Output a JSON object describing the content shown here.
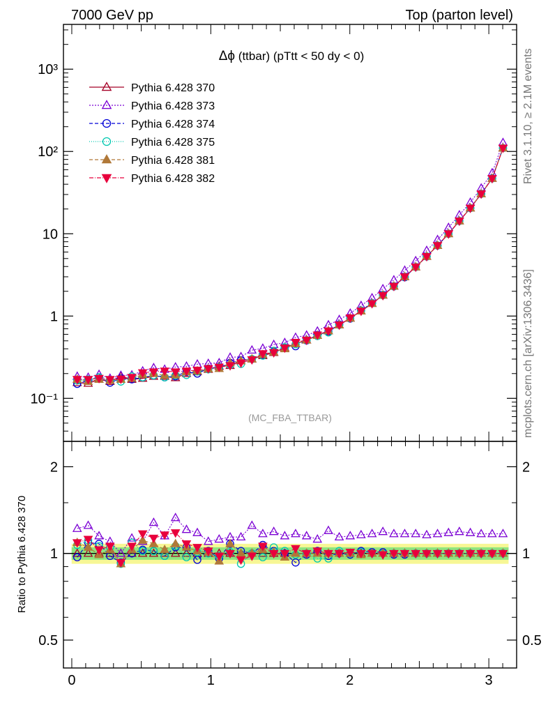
{
  "header": {
    "left": "7000 GeV pp",
    "right": "Top (parton level)"
  },
  "side_labels": {
    "rivet": "Rivet 3.1.10, ≥ 2.1M events",
    "mcplots": "mcplots.cern.ch [arXiv:1306.3436]"
  },
  "watermark": "(MC_FBA_TTBAR)",
  "chart_data": [
    {
      "type": "line",
      "title": "Δϕ (ttbar) (pTtt < 50 dy < 0)",
      "title_symbol": "Δϕ",
      "title_rest": "(ttbar) (pTtt < 50 dy < 0)",
      "yscale": "log",
      "ylim": [
        0.03,
        3500
      ],
      "xlim": [
        -0.06,
        3.2
      ],
      "ytick_labels": [
        "10⁻¹",
        "1",
        "10",
        "10²",
        "10³"
      ],
      "x": [
        0.039,
        0.118,
        0.196,
        0.275,
        0.353,
        0.432,
        0.51,
        0.589,
        0.668,
        0.746,
        0.825,
        0.903,
        0.982,
        1.06,
        1.139,
        1.217,
        1.296,
        1.374,
        1.453,
        1.532,
        1.61,
        1.689,
        1.767,
        1.846,
        1.924,
        2.003,
        2.081,
        2.16,
        2.238,
        2.317,
        2.395,
        2.474,
        2.553,
        2.631,
        2.71,
        2.788,
        2.867,
        2.945,
        3.024,
        3.102
      ],
      "series": [
        {
          "name": "Pythia 6.428 370",
          "color": "#a50026",
          "marker": "triangle-open",
          "dash": "none",
          "values": [
            0.155,
            0.152,
            0.17,
            0.16,
            0.185,
            0.17,
            0.175,
            0.185,
            0.185,
            0.178,
            0.2,
            0.21,
            0.225,
            0.245,
            0.25,
            0.285,
            0.3,
            0.33,
            0.36,
            0.41,
            0.46,
            0.51,
            0.58,
            0.66,
            0.78,
            0.94,
            1.15,
            1.42,
            1.79,
            2.3,
            3.0,
            3.95,
            5.3,
            7.2,
            10.0,
            14.3,
            20.5,
            30.5,
            47.0,
            110.0
          ]
        },
        {
          "name": "Pythia 6.428 373",
          "color": "#7b00d4",
          "marker": "triangle-open",
          "dash": "2,2",
          "values": [
            0.185,
            0.18,
            0.195,
            0.175,
            0.19,
            0.192,
            0.215,
            0.235,
            0.225,
            0.24,
            0.245,
            0.26,
            0.265,
            0.27,
            0.315,
            0.32,
            0.385,
            0.405,
            0.45,
            0.475,
            0.55,
            0.585,
            0.655,
            0.78,
            0.905,
            1.08,
            1.34,
            1.66,
            2.14,
            2.74,
            3.59,
            4.69,
            6.25,
            8.47,
            11.9,
            16.9,
            24.1,
            35.8,
            54.9,
            128.0
          ]
        },
        {
          "name": "Pythia 6.428 374",
          "color": "#0000d6",
          "marker": "circle-open",
          "dash": "5,3",
          "values": [
            0.15,
            0.165,
            0.18,
            0.155,
            0.175,
            0.17,
            0.18,
            0.19,
            0.18,
            0.185,
            0.21,
            0.2,
            0.23,
            0.235,
            0.27,
            0.29,
            0.3,
            0.34,
            0.37,
            0.41,
            0.43,
            0.505,
            0.59,
            0.65,
            0.79,
            0.93,
            1.17,
            1.44,
            1.81,
            2.29,
            2.96,
            3.94,
            5.29,
            7.19,
            10.0,
            14.3,
            20.5,
            30.6,
            47.2,
            110.0
          ]
        },
        {
          "name": "Pythia 6.428 375",
          "color": "#00c8b0",
          "marker": "circle-open",
          "dash": "1,2",
          "values": [
            0.165,
            0.17,
            0.18,
            0.168,
            0.16,
            0.185,
            0.18,
            0.19,
            0.18,
            0.19,
            0.192,
            0.212,
            0.225,
            0.24,
            0.255,
            0.262,
            0.3,
            0.33,
            0.378,
            0.418,
            0.454,
            0.51,
            0.571,
            0.632,
            0.78,
            0.94,
            1.17,
            1.43,
            1.79,
            2.3,
            3.0,
            3.95,
            5.3,
            7.2,
            10.0,
            14.3,
            20.5,
            30.5,
            47.0,
            110.0
          ]
        },
        {
          "name": "Pythia 6.428 381",
          "color": "#b07838",
          "marker": "triangle-filled",
          "dash": "5,3",
          "values": [
            0.17,
            0.16,
            0.17,
            0.165,
            0.17,
            0.175,
            0.195,
            0.2,
            0.19,
            0.192,
            0.21,
            0.215,
            0.228,
            0.23,
            0.27,
            0.285,
            0.3,
            0.34,
            0.365,
            0.4,
            0.46,
            0.51,
            0.58,
            0.66,
            0.78,
            0.94,
            1.15,
            1.42,
            1.79,
            2.3,
            3.0,
            3.95,
            5.3,
            7.2,
            10.0,
            14.3,
            20.5,
            30.5,
            47.0,
            110.0
          ]
        },
        {
          "name": "Pythia 6.428 382",
          "color": "#e8003c",
          "marker": "triangle-down-filled",
          "dash": "6,2,1,2",
          "values": [
            0.17,
            0.17,
            0.175,
            0.17,
            0.172,
            0.18,
            0.205,
            0.21,
            0.215,
            0.21,
            0.215,
            0.22,
            0.23,
            0.24,
            0.25,
            0.27,
            0.295,
            0.35,
            0.36,
            0.41,
            0.48,
            0.51,
            0.59,
            0.66,
            0.78,
            0.95,
            1.15,
            1.42,
            1.78,
            2.3,
            3.0,
            3.95,
            5.3,
            7.2,
            10.0,
            14.3,
            20.5,
            30.5,
            47.0,
            110.0
          ]
        }
      ]
    },
    {
      "type": "line",
      "ylabel": "Ratio to Pythia 6.428 370",
      "yscale": "log",
      "ylim": [
        0.4,
        2.45
      ],
      "xlim": [
        -0.06,
        3.2
      ],
      "ytick_labels": [
        "0.5",
        "1",
        "2"
      ],
      "xtick_labels": [
        "0",
        "1",
        "2",
        "3"
      ],
      "band": {
        "green_halfwidth": 0.05,
        "yellow_halfwidth": 0.08
      },
      "series": [
        {
          "name": "Pythia 6.428 370",
          "values": [
            1,
            1,
            1,
            1,
            1,
            1,
            1,
            1,
            1,
            1,
            1,
            1,
            1,
            1,
            1,
            1,
            1,
            1,
            1,
            1,
            1,
            1,
            1,
            1,
            1,
            1,
            1,
            1,
            1,
            1,
            1,
            1,
            1,
            1,
            1,
            1,
            1,
            1,
            1,
            1
          ]
        },
        {
          "name": "Pythia 6.428 373",
          "values": [
            1.22,
            1.25,
            1.15,
            1.1,
            1.0,
            1.13,
            1.1,
            1.28,
            1.15,
            1.33,
            1.21,
            1.18,
            1.1,
            1.12,
            1.14,
            1.14,
            1.25,
            1.17,
            1.19,
            1.15,
            1.17,
            1.15,
            1.12,
            1.2,
            1.14,
            1.15,
            1.16,
            1.17,
            1.19,
            1.17,
            1.17,
            1.17,
            1.16,
            1.17,
            1.18,
            1.19,
            1.18,
            1.17,
            1.17,
            1.17
          ]
        },
        {
          "name": "Pythia 6.428 374",
          "values": [
            0.97,
            1.09,
            1.08,
            0.98,
            0.93,
            1.0,
            1.03,
            1.02,
            0.98,
            1.05,
            1.05,
            0.95,
            1.02,
            0.96,
            1.08,
            1.02,
            1.0,
            1.07,
            1.02,
            1.0,
            0.93,
            0.99,
            1.02,
            0.98,
            1.0,
            0.99,
            1.02,
            1.01,
            1.01,
            0.99,
            0.99,
            1.0,
            1.0,
            1.0,
            1.0,
            1.0,
            1.0,
            1.0,
            1.0,
            1.0
          ]
        },
        {
          "name": "Pythia 6.428 375",
          "values": [
            1.07,
            1.11,
            1.06,
            1.05,
            0.92,
            1.09,
            1.02,
            1.02,
            0.98,
            1.06,
            0.97,
            1.01,
            1.0,
            0.98,
            1.01,
            0.92,
            1.0,
            0.97,
            1.05,
            1.02,
            0.99,
            1.0,
            0.96,
            0.96,
            1.02,
            1.0,
            1.01,
            1.0,
            1.0,
            1.0,
            1.0,
            1.0,
            1.0,
            1.0,
            1.0,
            1.0,
            1.0,
            1.0,
            1.0,
            1.0
          ]
        },
        {
          "name": "Pythia 6.428 381",
          "values": [
            1.09,
            1.05,
            0.99,
            1.03,
            0.92,
            1.03,
            1.11,
            1.08,
            1.03,
            1.08,
            1.05,
            1.02,
            1.01,
            0.94,
            1.08,
            1.0,
            1.0,
            1.03,
            1.01,
            0.97,
            1.0,
            1.0,
            1.0,
            1.0,
            1.0,
            1.0,
            0.99,
            1.0,
            1.0,
            1.0,
            1.0,
            1.0,
            1.0,
            1.0,
            1.0,
            1.0,
            1.0,
            1.0,
            1.0,
            1.0
          ]
        },
        {
          "name": "Pythia 6.428 382",
          "values": [
            1.09,
            1.12,
            1.03,
            1.06,
            0.93,
            1.06,
            1.17,
            1.13,
            1.16,
            1.18,
            1.08,
            1.05,
            1.02,
            0.98,
            1.0,
            0.95,
            0.98,
            1.06,
            1.0,
            1.0,
            1.04,
            1.0,
            1.02,
            1.0,
            1.0,
            1.01,
            1.0,
            1.0,
            0.99,
            1.0,
            1.0,
            1.0,
            1.0,
            1.0,
            1.0,
            1.0,
            1.0,
            1.0,
            1.0,
            1.0
          ]
        }
      ]
    }
  ]
}
